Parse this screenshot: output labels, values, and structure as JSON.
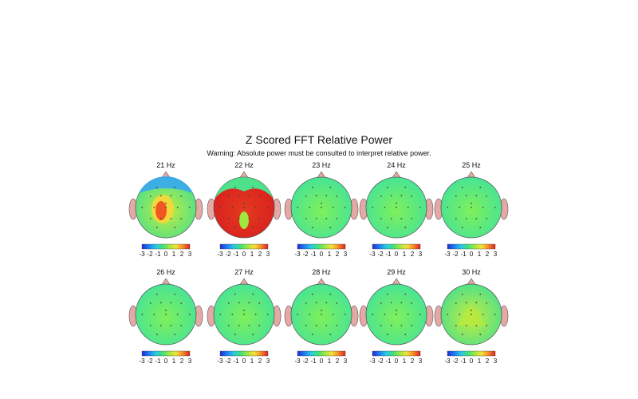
{
  "title": "Z Scored FFT Relative Power",
  "subtitle": "Warning:  Absolute power must be consulted to interpret relative power.",
  "colorbar": {
    "ticks": [
      "-3",
      "-2",
      "-1",
      "0",
      "1",
      "2",
      "3"
    ],
    "colors": [
      "#1e2bd6",
      "#1f7cf2",
      "#27c9e8",
      "#3fe07a",
      "#9ee840",
      "#f6e13a",
      "#f58a26",
      "#e02020"
    ]
  },
  "head_colors": {
    "ear": "#e4a9a4",
    "nose": "#e4a9a4",
    "outline": "#555555",
    "electrode": "#444444"
  },
  "maps": [
    {
      "label": "21 Hz",
      "value": 0.4
    },
    {
      "label": "22 Hz",
      "value": 2.6
    },
    {
      "label": "23 Hz",
      "value": 0.1
    },
    {
      "label": "24 Hz",
      "value": 0.1
    },
    {
      "label": "25 Hz",
      "value": 0.1
    },
    {
      "label": "26 Hz",
      "value": 0.1
    },
    {
      "label": "27 Hz",
      "value": 0.1
    },
    {
      "label": "28 Hz",
      "value": 0.1
    },
    {
      "label": "29 Hz",
      "value": 0.1
    },
    {
      "label": "30 Hz",
      "value": 0.3
    }
  ]
}
